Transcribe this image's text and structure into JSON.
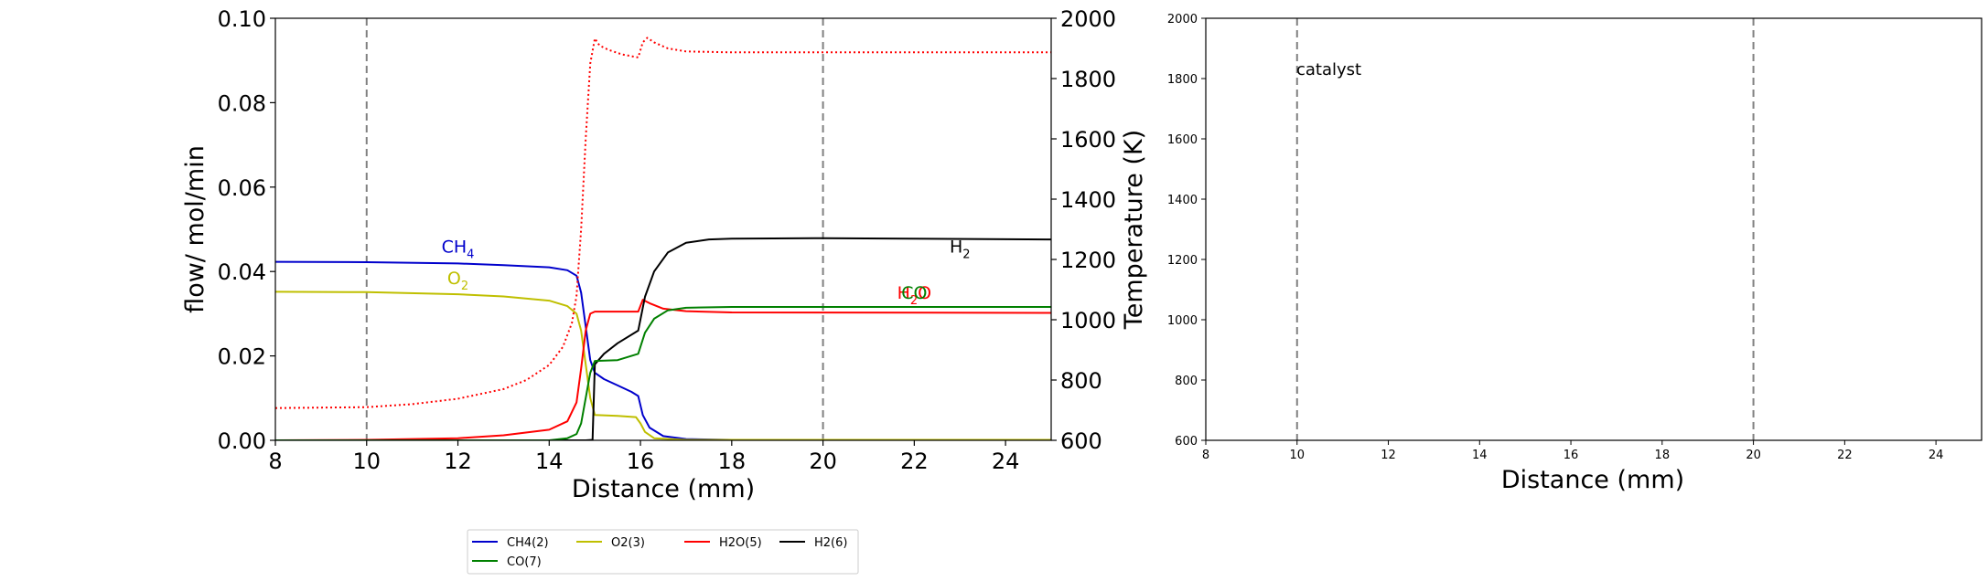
{
  "chart_data": [
    {
      "type": "line",
      "xlabel": "Distance (mm)",
      "ylabel": "flow/ mol/min",
      "y2label": "Temperature (K)",
      "xlim": [
        8,
        25
      ],
      "ylim": [
        0,
        0.1
      ],
      "y2lim": [
        600,
        2000
      ],
      "xticks": [
        "8",
        "10",
        "12",
        "14",
        "16",
        "18",
        "20",
        "22",
        "24"
      ],
      "yticks": [
        "0.00",
        "0.02",
        "0.04",
        "0.06",
        "0.08",
        "0.10"
      ],
      "y2ticks": [
        "600",
        "800",
        "1000",
        "1200",
        "1400",
        "1600",
        "1800",
        "2000"
      ],
      "vlines": [
        10,
        20
      ],
      "legend": {
        "placement": "below",
        "entries": [
          "CH4(2)",
          "O2(3)",
          "H2O(5)",
          "H2(6)",
          "CO(7)"
        ]
      },
      "annotations": [
        {
          "base": "CH",
          "sub": "4",
          "post": "",
          "x": 12.0,
          "y": 0.0445,
          "color": "#0000cc"
        },
        {
          "base": "O",
          "sub": "2",
          "post": "",
          "x": 12.0,
          "y": 0.037,
          "color": "#bfbf00"
        },
        {
          "base": "H",
          "sub": "2",
          "post": "",
          "x": 23.0,
          "y": 0.0445,
          "color": "#000000"
        },
        {
          "base": "H",
          "sub": "2",
          "post": "O",
          "x": 22.0,
          "y": 0.0335,
          "color": "#ff0000"
        },
        {
          "base": "CO",
          "sub": "",
          "post": "",
          "x": 22.0,
          "y": 0.0335,
          "color": "#008000"
        }
      ],
      "series": [
        {
          "name": "CH4(2)",
          "color": "#0000cc",
          "axis": "left",
          "x": [
            8,
            10,
            12,
            13,
            14,
            14.4,
            14.6,
            14.7,
            14.8,
            14.9,
            15.0,
            15.2,
            15.5,
            15.8,
            15.95,
            16.05,
            16.2,
            16.5,
            17,
            18,
            25
          ],
          "y": [
            0.0423,
            0.0422,
            0.0419,
            0.0415,
            0.041,
            0.0403,
            0.039,
            0.035,
            0.027,
            0.019,
            0.016,
            0.0145,
            0.013,
            0.0115,
            0.0105,
            0.006,
            0.003,
            0.001,
            0.0003,
            0.0001,
            0.0001
          ]
        },
        {
          "name": "O2(3)",
          "color": "#bfbf00",
          "axis": "left",
          "x": [
            8,
            10,
            12,
            13,
            14,
            14.4,
            14.6,
            14.7,
            14.8,
            14.9,
            15.0,
            15.5,
            15.9,
            16.0,
            16.1,
            16.3,
            17,
            25
          ],
          "y": [
            0.0352,
            0.0351,
            0.0346,
            0.0341,
            0.0331,
            0.0318,
            0.03,
            0.026,
            0.018,
            0.01,
            0.006,
            0.0058,
            0.0055,
            0.004,
            0.002,
            0.0005,
            0.0001,
            0.0001
          ]
        },
        {
          "name": "H2O(5)",
          "color": "#ff0000",
          "axis": "left",
          "x": [
            8,
            10,
            12,
            13,
            14,
            14.4,
            14.6,
            14.7,
            14.8,
            14.9,
            15.0,
            15.5,
            15.95,
            16.05,
            16.2,
            16.5,
            17,
            18,
            25
          ],
          "y": [
            0.0,
            0.0001,
            0.0005,
            0.0012,
            0.0025,
            0.0045,
            0.009,
            0.017,
            0.026,
            0.03,
            0.0305,
            0.0305,
            0.0305,
            0.0333,
            0.0325,
            0.0312,
            0.0306,
            0.0303,
            0.0302
          ]
        },
        {
          "name": "H2(6)",
          "color": "#000000",
          "axis": "left",
          "x": [
            8,
            14,
            14.8,
            14.95,
            15.0,
            15.2,
            15.5,
            15.95,
            16.1,
            16.3,
            16.6,
            17,
            17.5,
            18,
            20,
            25
          ],
          "y": [
            0.0,
            0.0,
            0.0,
            0.0001,
            0.018,
            0.0205,
            0.023,
            0.026,
            0.034,
            0.04,
            0.0445,
            0.0468,
            0.0476,
            0.0478,
            0.0479,
            0.0476
          ]
        },
        {
          "name": "CO(7)",
          "color": "#008000",
          "axis": "left",
          "x": [
            8,
            14,
            14.4,
            14.6,
            14.7,
            14.8,
            14.9,
            15.0,
            15.5,
            15.95,
            16.1,
            16.3,
            16.6,
            17,
            18,
            25
          ],
          "y": [
            0.0,
            0.0,
            0.0005,
            0.0015,
            0.004,
            0.01,
            0.016,
            0.0188,
            0.019,
            0.0205,
            0.0255,
            0.0288,
            0.0308,
            0.0314,
            0.0316,
            0.0316
          ]
        },
        {
          "name": "",
          "color": "#ff0000",
          "axis": "right",
          "dash": true,
          "x": [
            8,
            10,
            11,
            12,
            13,
            13.5,
            14,
            14.3,
            14.5,
            14.6,
            14.7,
            14.8,
            14.9,
            15.0,
            15.1,
            15.3,
            15.6,
            15.95,
            16.05,
            16.15,
            16.3,
            16.6,
            17,
            18,
            25
          ],
          "y": [
            707,
            710,
            720,
            738,
            770,
            800,
            850,
            910,
            990,
            1080,
            1300,
            1600,
            1850,
            1933,
            1910,
            1895,
            1880,
            1870,
            1920,
            1935,
            1920,
            1900,
            1890,
            1887,
            1887
          ]
        }
      ]
    },
    {
      "type": "line",
      "xlabel": "Distance (mm)",
      "xlim": [
        8,
        25
      ],
      "ylim": [
        600,
        2000
      ],
      "xticks": [
        "8",
        "10",
        "12",
        "14",
        "16",
        "18",
        "20",
        "22",
        "24"
      ],
      "yticks": [
        "600",
        "800",
        "1000",
        "1200",
        "1400",
        "1600",
        "1800",
        "2000"
      ],
      "vlines": [
        10,
        20
      ],
      "annotation": "catalyst",
      "series": []
    }
  ]
}
